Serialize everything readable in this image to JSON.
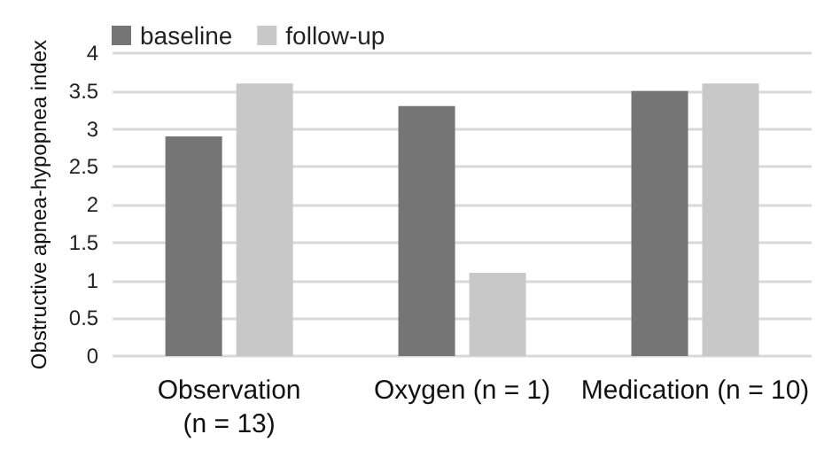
{
  "chart_data": {
    "type": "bar",
    "ylabel": "Obstructive apnea-hypopnea index",
    "categories": [
      "Observation\n(n = 13)",
      "Oxygen (n = 1)",
      "Medication (n = 10)"
    ],
    "series": [
      {
        "name": "baseline",
        "color": "#757575",
        "values": [
          2.9,
          3.3,
          3.5
        ]
      },
      {
        "name": "follow-up",
        "color": "#c8c8c8",
        "values": [
          3.6,
          1.1,
          3.6
        ]
      }
    ],
    "ylim": [
      0,
      4
    ],
    "yticks": [
      0,
      0.5,
      1,
      1.5,
      2,
      2.5,
      3,
      3.5,
      4
    ],
    "grid": "y",
    "legend": "top left"
  }
}
